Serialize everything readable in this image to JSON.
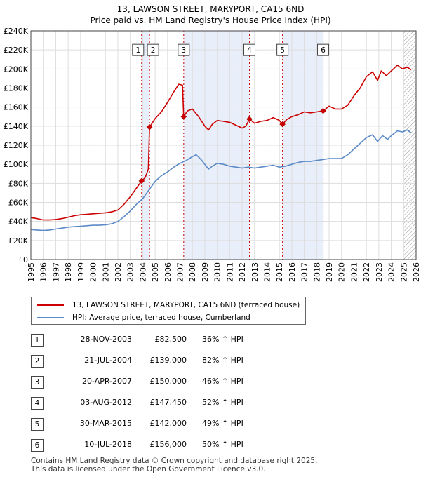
{
  "chart_data": {
    "type": "line",
    "title": "13, LAWSON STREET, MARYPORT, CA15 6ND",
    "subtitle": "Price paid vs. HM Land Registry's House Price Index (HPI)",
    "xlim": [
      1995,
      2026
    ],
    "ylim": [
      0,
      240000
    ],
    "x_ticks": [
      "1995",
      "1996",
      "1997",
      "1998",
      "1999",
      "2000",
      "2001",
      "2002",
      "2003",
      "2004",
      "2005",
      "2006",
      "2007",
      "2008",
      "2009",
      "2010",
      "2011",
      "2012",
      "2013",
      "2014",
      "2015",
      "2016",
      "2017",
      "2018",
      "2019",
      "2020",
      "2021",
      "2022",
      "2023",
      "2024",
      "2025",
      "2026"
    ],
    "y_ticks": [
      {
        "v": 0,
        "label": "£0"
      },
      {
        "v": 20000,
        "label": "£20K"
      },
      {
        "v": 40000,
        "label": "£40K"
      },
      {
        "v": 60000,
        "label": "£60K"
      },
      {
        "v": 80000,
        "label": "£80K"
      },
      {
        "v": 100000,
        "label": "£100K"
      },
      {
        "v": 120000,
        "label": "£120K"
      },
      {
        "v": 140000,
        "label": "£140K"
      },
      {
        "v": 160000,
        "label": "£160K"
      },
      {
        "v": 180000,
        "label": "£180K"
      },
      {
        "v": 200000,
        "label": "£200K"
      },
      {
        "v": 220000,
        "label": "£220K"
      },
      {
        "v": 240000,
        "label": "£240K"
      }
    ],
    "grid": true,
    "shaded_ranges": [
      [
        2003.91,
        2004.55
      ],
      [
        2007.3,
        2012.59
      ],
      [
        2015.25,
        2018.52
      ]
    ],
    "future_hatch_from": 2025.0,
    "series": [
      {
        "name": "13, LAWSON STREET, MARYPORT, CA15 6ND (terraced house)",
        "color": "#cc0000",
        "points": [
          [
            1995.0,
            44000
          ],
          [
            1995.5,
            43000
          ],
          [
            1996.0,
            41500
          ],
          [
            1996.5,
            41500
          ],
          [
            1997.0,
            42000
          ],
          [
            1997.5,
            43000
          ],
          [
            1998.0,
            44500
          ],
          [
            1998.5,
            46000
          ],
          [
            1999.0,
            47000
          ],
          [
            1999.5,
            47500
          ],
          [
            2000.0,
            48000
          ],
          [
            2000.5,
            48500
          ],
          [
            2001.0,
            49000
          ],
          [
            2001.5,
            50000
          ],
          [
            2002.0,
            52000
          ],
          [
            2002.5,
            58000
          ],
          [
            2003.0,
            66000
          ],
          [
            2003.5,
            75000
          ],
          [
            2003.91,
            82500
          ],
          [
            2004.2,
            86000
          ],
          [
            2004.45,
            95000
          ],
          [
            2004.55,
            139000
          ],
          [
            2004.8,
            144000
          ],
          [
            2005.0,
            148000
          ],
          [
            2005.5,
            155000
          ],
          [
            2006.0,
            165000
          ],
          [
            2006.5,
            176000
          ],
          [
            2006.9,
            184000
          ],
          [
            2007.2,
            183000
          ],
          [
            2007.3,
            150000
          ],
          [
            2007.6,
            156000
          ],
          [
            2008.0,
            158000
          ],
          [
            2008.5,
            150000
          ],
          [
            2009.0,
            140000
          ],
          [
            2009.3,
            136000
          ],
          [
            2009.6,
            142000
          ],
          [
            2010.0,
            146000
          ],
          [
            2010.5,
            145000
          ],
          [
            2011.0,
            144000
          ],
          [
            2011.5,
            141000
          ],
          [
            2012.0,
            138000
          ],
          [
            2012.3,
            140000
          ],
          [
            2012.59,
            147450
          ],
          [
            2013.0,
            143000
          ],
          [
            2013.5,
            145000
          ],
          [
            2014.0,
            146000
          ],
          [
            2014.5,
            149000
          ],
          [
            2015.0,
            146000
          ],
          [
            2015.25,
            142000
          ],
          [
            2015.6,
            147000
          ],
          [
            2016.0,
            150000
          ],
          [
            2016.5,
            152000
          ],
          [
            2017.0,
            155000
          ],
          [
            2017.5,
            154000
          ],
          [
            2018.0,
            155000
          ],
          [
            2018.52,
            156000
          ],
          [
            2019.0,
            161000
          ],
          [
            2019.5,
            158000
          ],
          [
            2020.0,
            158000
          ],
          [
            2020.5,
            162000
          ],
          [
            2021.0,
            172000
          ],
          [
            2021.5,
            180000
          ],
          [
            2022.0,
            192000
          ],
          [
            2022.5,
            197000
          ],
          [
            2022.9,
            188000
          ],
          [
            2023.2,
            198000
          ],
          [
            2023.6,
            193000
          ],
          [
            2024.0,
            198000
          ],
          [
            2024.5,
            204000
          ],
          [
            2024.9,
            200000
          ],
          [
            2025.3,
            202000
          ],
          [
            2025.6,
            199000
          ]
        ]
      },
      {
        "name": "HPI: Average price, terraced house, Cumberland",
        "color": "#5b8ac8",
        "points": [
          [
            1995.0,
            31500
          ],
          [
            1995.5,
            31000
          ],
          [
            1996.0,
            30500
          ],
          [
            1996.5,
            31000
          ],
          [
            1997.0,
            32000
          ],
          [
            1997.5,
            33000
          ],
          [
            1998.0,
            34000
          ],
          [
            1998.5,
            34500
          ],
          [
            1999.0,
            35000
          ],
          [
            1999.5,
            35500
          ],
          [
            2000.0,
            36000
          ],
          [
            2000.5,
            36000
          ],
          [
            2001.0,
            36500
          ],
          [
            2001.5,
            37500
          ],
          [
            2002.0,
            40000
          ],
          [
            2002.5,
            45000
          ],
          [
            2003.0,
            51000
          ],
          [
            2003.5,
            58000
          ],
          [
            2004.0,
            64000
          ],
          [
            2004.5,
            73000
          ],
          [
            2005.0,
            82000
          ],
          [
            2005.5,
            88000
          ],
          [
            2006.0,
            92000
          ],
          [
            2006.5,
            97000
          ],
          [
            2007.0,
            101000
          ],
          [
            2007.5,
            104000
          ],
          [
            2008.0,
            108000
          ],
          [
            2008.3,
            110000
          ],
          [
            2008.7,
            105000
          ],
          [
            2009.0,
            100000
          ],
          [
            2009.3,
            95000
          ],
          [
            2009.6,
            98000
          ],
          [
            2010.0,
            101000
          ],
          [
            2010.5,
            100000
          ],
          [
            2011.0,
            98000
          ],
          [
            2011.5,
            97000
          ],
          [
            2012.0,
            96000
          ],
          [
            2012.5,
            97000
          ],
          [
            2013.0,
            96000
          ],
          [
            2013.5,
            97000
          ],
          [
            2014.0,
            98000
          ],
          [
            2014.5,
            99000
          ],
          [
            2015.0,
            97000
          ],
          [
            2015.5,
            98000
          ],
          [
            2016.0,
            100000
          ],
          [
            2016.5,
            102000
          ],
          [
            2017.0,
            103000
          ],
          [
            2017.5,
            103000
          ],
          [
            2018.0,
            104000
          ],
          [
            2018.5,
            105000
          ],
          [
            2019.0,
            106000
          ],
          [
            2019.5,
            106000
          ],
          [
            2020.0,
            106000
          ],
          [
            2020.5,
            110000
          ],
          [
            2021.0,
            116000
          ],
          [
            2021.5,
            122000
          ],
          [
            2022.0,
            128000
          ],
          [
            2022.5,
            131000
          ],
          [
            2022.9,
            124000
          ],
          [
            2023.3,
            130000
          ],
          [
            2023.7,
            126000
          ],
          [
            2024.0,
            130000
          ],
          [
            2024.5,
            135000
          ],
          [
            2024.9,
            134000
          ],
          [
            2025.3,
            136000
          ],
          [
            2025.6,
            133000
          ]
        ]
      }
    ],
    "sale_markers": [
      {
        "n": "1",
        "year": 2003.91,
        "price": 82500
      },
      {
        "n": "2",
        "year": 2004.55,
        "price": 139000
      },
      {
        "n": "3",
        "year": 2007.3,
        "price": 150000
      },
      {
        "n": "4",
        "year": 2012.59,
        "price": 147450
      },
      {
        "n": "5",
        "year": 2015.25,
        "price": 142000
      },
      {
        "n": "6",
        "year": 2018.52,
        "price": 156000
      }
    ]
  },
  "legend": {
    "property_label": "13, LAWSON STREET, MARYPORT, CA15 6ND (terraced house)",
    "property_color": "#cc0000",
    "hpi_label": "HPI: Average price, terraced house, Cumberland",
    "hpi_color": "#5b8ac8"
  },
  "sales": [
    {
      "n": "1",
      "date": "28-NOV-2003",
      "price": "£82,500",
      "hpi": "36% ↑ HPI"
    },
    {
      "n": "2",
      "date": "21-JUL-2004",
      "price": "£139,000",
      "hpi": "82% ↑ HPI"
    },
    {
      "n": "3",
      "date": "20-APR-2007",
      "price": "£150,000",
      "hpi": "46% ↑ HPI"
    },
    {
      "n": "4",
      "date": "03-AUG-2012",
      "price": "£147,450",
      "hpi": "52% ↑ HPI"
    },
    {
      "n": "5",
      "date": "30-MAR-2015",
      "price": "£142,000",
      "hpi": "49% ↑ HPI"
    },
    {
      "n": "6",
      "date": "10-JUL-2018",
      "price": "£156,000",
      "hpi": "50% ↑ HPI"
    }
  ],
  "footer": {
    "line1": "Contains HM Land Registry data © Crown copyright and database right 2025.",
    "line2": "This data is licensed under the Open Government Licence v3.0."
  }
}
